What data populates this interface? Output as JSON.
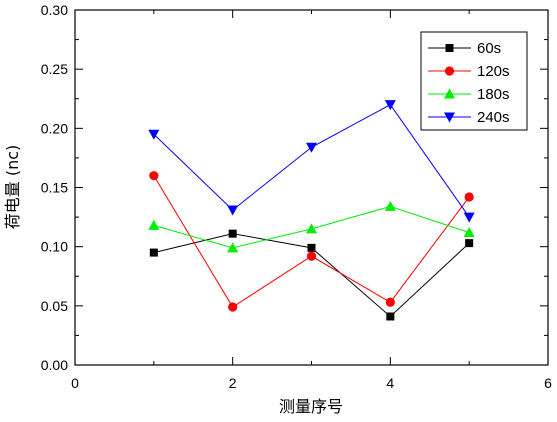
{
  "chart_data": {
    "type": "line",
    "title": "",
    "xlabel": "测量序号",
    "ylabel": "荷电量 (nc)",
    "xlim": [
      0,
      6
    ],
    "ylim": [
      0,
      0.3
    ],
    "x_ticks": [
      "0",
      "2",
      "4",
      "6"
    ],
    "y_ticks": [
      "0.00",
      "0.05",
      "0.10",
      "0.15",
      "0.20",
      "0.25",
      "0.30"
    ],
    "grid": false,
    "legend_position": "top-right",
    "x": [
      1,
      2,
      3,
      4,
      5
    ],
    "series": [
      {
        "name": "60s",
        "color": "#000000",
        "marker": "square",
        "values": [
          0.095,
          0.111,
          0.099,
          0.041,
          0.103
        ]
      },
      {
        "name": "120s",
        "color": "#ff0000",
        "marker": "circle",
        "values": [
          0.16,
          0.049,
          0.092,
          0.053,
          0.142
        ]
      },
      {
        "name": "180s",
        "color": "#00ee00",
        "marker": "triangle-up",
        "values": [
          0.118,
          0.099,
          0.115,
          0.134,
          0.112
        ]
      },
      {
        "name": "240s",
        "color": "#0000ff",
        "marker": "triangle-down",
        "values": [
          0.195,
          0.131,
          0.184,
          0.22,
          0.125
        ]
      }
    ]
  }
}
